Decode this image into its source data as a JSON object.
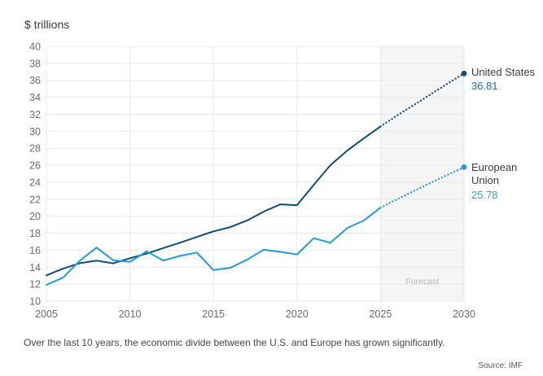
{
  "style": {
    "grid_color": "#e8e8e8",
    "band_color": "#f5f5f5",
    "tick_text_color": "#6b6b6b",
    "forecast_text_color": "#b8b8b8",
    "us_line_color": "#0d4d7d",
    "eu_line_color": "#1e9cdf",
    "us_value_text_color": "#1a6dad",
    "eu_value_text_color": "#2f9fd8"
  },
  "chart_data": {
    "type": "line",
    "title": "$ trillions",
    "x": [
      2005,
      2006,
      2007,
      2008,
      2009,
      2010,
      2011,
      2012,
      2013,
      2014,
      2015,
      2016,
      2017,
      2018,
      2019,
      2020,
      2021,
      2022,
      2023,
      2024,
      2025,
      2026,
      2027,
      2028,
      2029,
      2030
    ],
    "series": [
      {
        "id": "united-states",
        "name": "United States",
        "color": "#0d4d7d",
        "value_color": "#1a6dad",
        "end_value": "36.81",
        "values": [
          13.04,
          13.82,
          14.47,
          14.77,
          14.45,
          15.05,
          15.6,
          16.25,
          16.88,
          17.55,
          18.21,
          18.71,
          19.48,
          20.53,
          21.4,
          21.3,
          23.68,
          26.01,
          27.72,
          29.18,
          30.57,
          31.87,
          33.1,
          34.35,
          35.6,
          36.81
        ]
      },
      {
        "id": "european-union",
        "name": "European Union",
        "color": "#1e9cdf",
        "value_color": "#2f9fd8",
        "end_value": "25.78",
        "values": [
          11.92,
          12.77,
          14.76,
          16.31,
          14.81,
          14.62,
          15.86,
          14.78,
          15.33,
          15.72,
          13.66,
          13.92,
          14.87,
          16.05,
          15.81,
          15.49,
          17.41,
          16.87,
          18.59,
          19.5,
          21.0,
          22.0,
          22.98,
          23.94,
          24.87,
          25.78
        ]
      }
    ],
    "xticks": [
      2005,
      2010,
      2015,
      2020,
      2025,
      2030
    ],
    "ylim": [
      10,
      40
    ],
    "ytick_step": 2,
    "grid": true,
    "forecast_start_x": 2025,
    "forecast_region_label": "Forecast",
    "legend_position": "right-end-labels"
  },
  "caption": {
    "text": "Over the last 10 years, the economic divide between the U.S. and Europe has grown significantly."
  },
  "source": {
    "text": "Source: IMF"
  }
}
